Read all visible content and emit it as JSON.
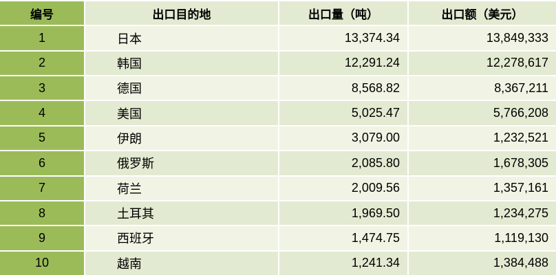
{
  "table": {
    "headers": [
      "编号",
      "出口目的地",
      "出口量（吨）",
      "出口额（美元）"
    ],
    "rows": [
      {
        "no": "1",
        "destination": "日本",
        "volume": "13,374.34",
        "value": "13,849,333"
      },
      {
        "no": "2",
        "destination": "韩国",
        "volume": "12,291.24",
        "value": "12,278,617"
      },
      {
        "no": "3",
        "destination": "德国",
        "volume": "8,568.82",
        "value": "8,367,211"
      },
      {
        "no": "4",
        "destination": "美国",
        "volume": "5,025.47",
        "value": "5,766,208"
      },
      {
        "no": "5",
        "destination": "伊朗",
        "volume": "3,079.00",
        "value": "1,232,521"
      },
      {
        "no": "6",
        "destination": "俄罗斯",
        "volume": "2,085.80",
        "value": "1,678,305"
      },
      {
        "no": "7",
        "destination": "荷兰",
        "volume": "2,009.56",
        "value": "1,357,161"
      },
      {
        "no": "8",
        "destination": "土耳其",
        "volume": "1,969.50",
        "value": "1,234,275"
      },
      {
        "no": "9",
        "destination": "西班牙",
        "volume": "1,474.75",
        "value": "1,119,130"
      },
      {
        "no": "10",
        "destination": "越南",
        "volume": "1,241.34",
        "value": "1,384,488"
      }
    ]
  },
  "colors": {
    "accent_green": "#9bbb59",
    "row_light": "#f1f4e4",
    "row_band": "#e3ead2",
    "grid_lines": "#ffffff",
    "text": "#000000"
  },
  "chart_data": {
    "type": "table",
    "title": "",
    "columns": [
      "编号",
      "出口目的地",
      "出口量（吨）",
      "出口额（美元）"
    ],
    "rows": [
      [
        1,
        "日本",
        13374.34,
        13849333
      ],
      [
        2,
        "韩国",
        12291.24,
        12278617
      ],
      [
        3,
        "德国",
        8568.82,
        8367211
      ],
      [
        4,
        "美国",
        5025.47,
        5766208
      ],
      [
        5,
        "伊朗",
        3079.0,
        1232521
      ],
      [
        6,
        "俄罗斯",
        2085.8,
        1678305
      ],
      [
        7,
        "荷兰",
        2009.56,
        1357161
      ],
      [
        8,
        "土耳其",
        1969.5,
        1234275
      ],
      [
        9,
        "西班牙",
        1474.75,
        1119130
      ],
      [
        10,
        "越南",
        1241.34,
        1384488
      ]
    ]
  }
}
